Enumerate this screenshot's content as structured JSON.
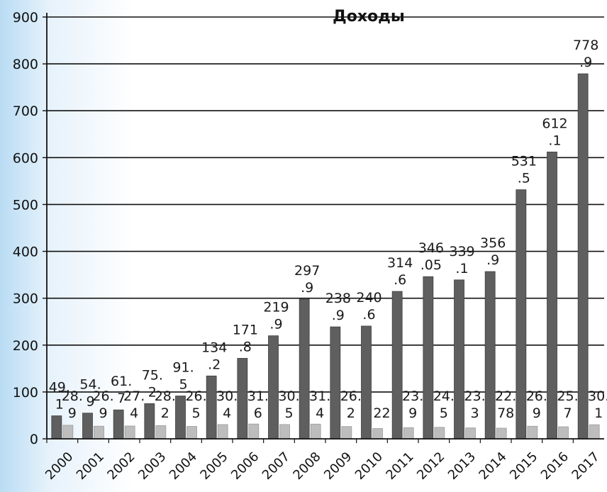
{
  "chart_data": {
    "type": "bar",
    "title": "Доходы",
    "xlabel": "",
    "ylabel": "",
    "ylim": [
      0,
      900
    ],
    "yticks": [
      0,
      100,
      200,
      300,
      400,
      500,
      600,
      700,
      800,
      900
    ],
    "grid": true,
    "categories": [
      "2000",
      "2001",
      "2002",
      "2003",
      "2004",
      "2005",
      "2006",
      "2007",
      "2008",
      "2009",
      "2010",
      "2011",
      "2012",
      "2013",
      "2014",
      "2015",
      "2016",
      "2017"
    ],
    "series": [
      {
        "color": "#5f5f5f",
        "values": [
          49.1,
          54.9,
          61.7,
          75.2,
          91.5,
          134.2,
          171.8,
          219.9,
          297.9,
          238.9,
          240.6,
          314.6,
          346.05,
          339.1,
          356.9,
          531.5,
          612.1,
          778.9
        ],
        "labels": [
          [
            "49.",
            "1"
          ],
          [
            "54.",
            "9"
          ],
          [
            "61.",
            "7"
          ],
          [
            "75.",
            "2"
          ],
          [
            "91.",
            "5"
          ],
          [
            "134",
            ".2"
          ],
          [
            "171",
            ".8"
          ],
          [
            "219",
            ".9"
          ],
          [
            "297",
            ".9"
          ],
          [
            "238",
            ".9"
          ],
          [
            "240",
            ".6"
          ],
          [
            "314",
            ".6"
          ],
          [
            "346",
            ".05"
          ],
          [
            "339",
            ".1"
          ],
          [
            "356",
            ".9"
          ],
          [
            "531",
            ".5"
          ],
          [
            "612",
            ".1"
          ],
          [
            "778",
            ".9"
          ]
        ]
      },
      {
        "color": "#bdbdbd",
        "values": [
          28.9,
          26.9,
          27.4,
          28.2,
          26.5,
          30.4,
          31.6,
          30.5,
          31.4,
          26.2,
          22,
          23.9,
          24.5,
          23.3,
          22.78,
          26.9,
          25.7,
          30.1
        ],
        "labels": [
          [
            "28.",
            "9"
          ],
          [
            "26.",
            "9"
          ],
          [
            "27.",
            "4"
          ],
          [
            "28.",
            "2"
          ],
          [
            "26.",
            "5"
          ],
          [
            "30.",
            "4"
          ],
          [
            "31.",
            "6"
          ],
          [
            "30.",
            "5"
          ],
          [
            "31.",
            "4"
          ],
          [
            "26.",
            "2"
          ],
          [
            "",
            "22"
          ],
          [
            "23.",
            "9"
          ],
          [
            "24.",
            "5"
          ],
          [
            "23.",
            "3"
          ],
          [
            "22.",
            "78"
          ],
          [
            "26.",
            "9"
          ],
          [
            "25.",
            "7"
          ],
          [
            "30.",
            "1"
          ]
        ]
      }
    ]
  }
}
